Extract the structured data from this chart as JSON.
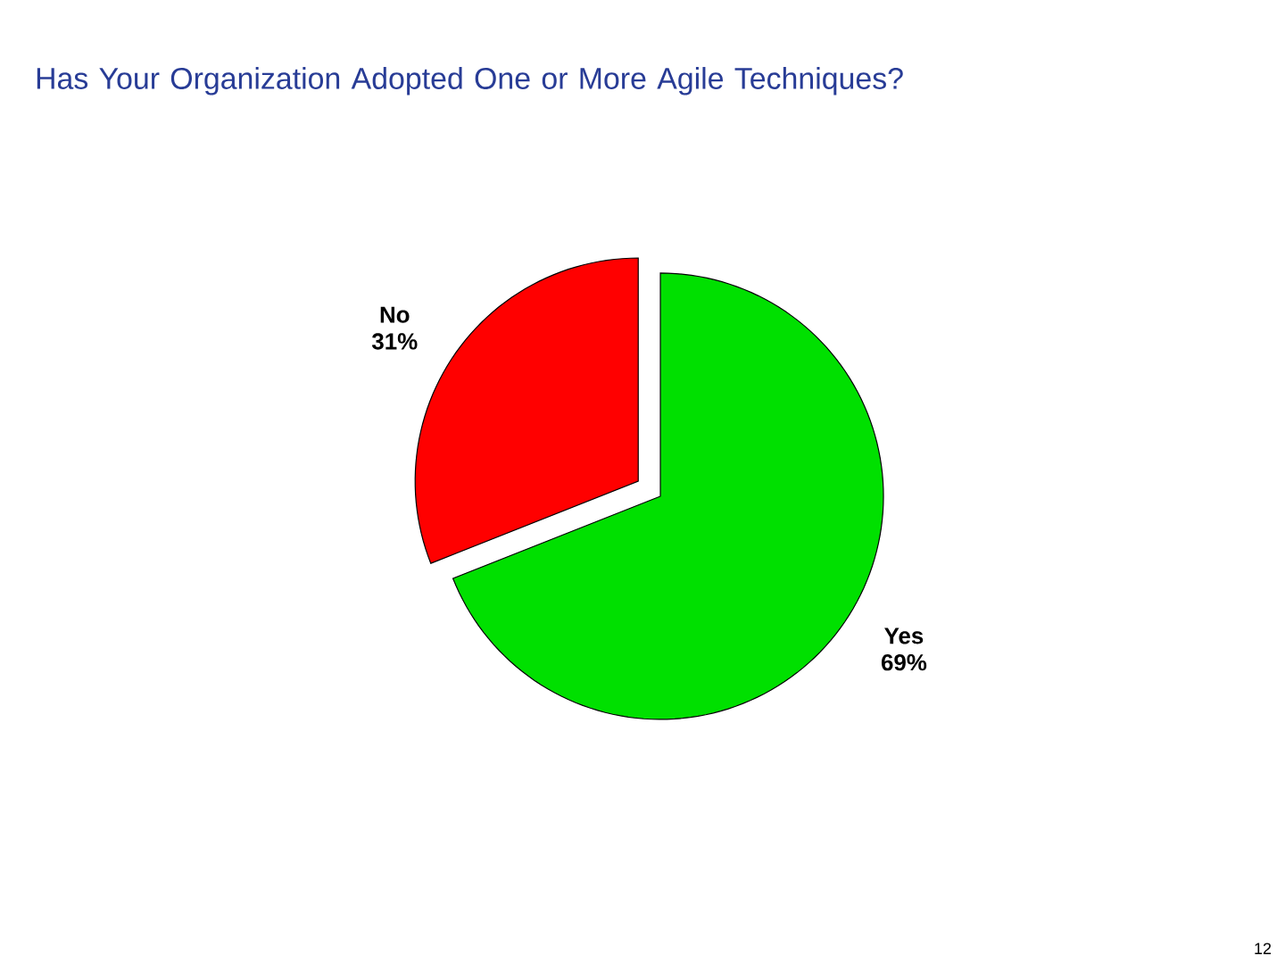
{
  "chart_data": {
    "type": "pie",
    "title": "Has Your Organization Adopted One or More Agile Techniques?",
    "categories": [
      "No",
      "Yes"
    ],
    "values": [
      31,
      69
    ],
    "colors": [
      "#ff0000",
      "#00e000"
    ],
    "value_labels": [
      "31%",
      "69%"
    ],
    "annotations": [
      "12"
    ]
  }
}
